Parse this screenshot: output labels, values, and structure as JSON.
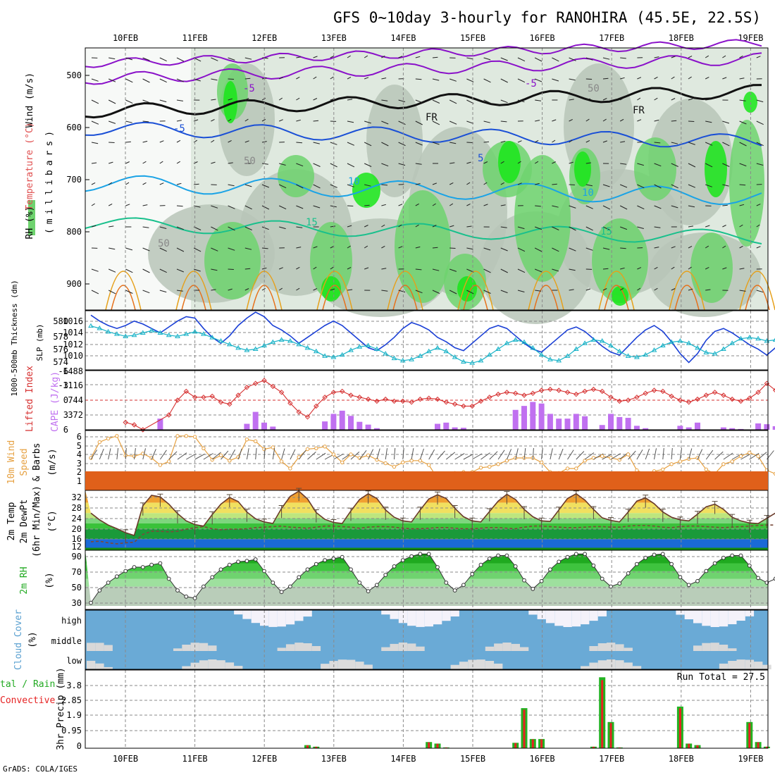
{
  "title": "GFS 0~10day 3-hourly for RANOHIRA (45.5E, 22.5S)",
  "footer": "GrADS: COLA/IGES",
  "dates": [
    "10FEB",
    "11FEB",
    "12FEB",
    "13FEB",
    "14FEB",
    "15FEB",
    "16FEB",
    "17FEB",
    "18FEB",
    "19FEB"
  ],
  "colors": {
    "rh_light": "#dfe9df",
    "rh_mid": "#b9c6b9",
    "rh_green": "#6fd36f",
    "rh_bright": "#19e619",
    "temp_purple": "#8a11c9",
    "temp_blue": "#1a4fd6",
    "temp_cyan": "#1aa3e6",
    "temp_teal": "#19c08c",
    "temp_orange": "#e6a01a",
    "temp_red": "#d61a8c",
    "slp": "#1a3fd6",
    "thickness": "#19b3c8",
    "lifted_index": "#d62f2f",
    "cape": "#c070f0",
    "wind_speed": "#e6a040",
    "cloud": "#6aaad6",
    "precip_total": "#22b322",
    "precip_conv": "#e62222"
  },
  "upper_panel": {
    "label_wind": "Wind (m/s)",
    "label_temp": "Temperature (°C)",
    "label_rh": "RH (%)",
    "label_pressure": "(millibars)",
    "pressure_ticks": [
      "500",
      "600",
      "700",
      "800",
      "900"
    ],
    "contour_labels": [
      "-5",
      "-5",
      "FR",
      "FR",
      "-5",
      "5",
      "10",
      "10",
      "15",
      "15",
      "50",
      "50",
      "50"
    ]
  },
  "slp_panel": {
    "label_left": "1000-500mb Thickness (dm)",
    "label_right": "SLP (mb)",
    "left_ticks": [
      "580",
      "578",
      "576",
      "574"
    ],
    "right_ticks": [
      "1016",
      "1014",
      "1012",
      "1010"
    ]
  },
  "cape_panel": {
    "label_left": "Lifted Index",
    "label_right": "CAPE (J/kg)",
    "left_ticks": [
      "-6",
      "-3",
      "0",
      "3",
      "6"
    ],
    "right_ticks": [
      "1488",
      "1116",
      "744",
      "372"
    ]
  },
  "wind10_panel": {
    "label_a": "10m Wind",
    "label_b": "Speed",
    "label_c": "& Barbs",
    "unit": "(m/s)",
    "ticks": [
      "6",
      "5",
      "4",
      "3",
      "2",
      "1"
    ]
  },
  "temp2m_panel": {
    "label_a": "2m Temp",
    "label_b": "2m DewPt",
    "label_c": "(6hr Min/Max)",
    "unit": "(°C)",
    "ticks": [
      "32",
      "28",
      "24",
      "20",
      "16",
      "12"
    ]
  },
  "rh2m_panel": {
    "label": "2m RH",
    "unit": "(%)",
    "ticks": [
      "90",
      "70",
      "50",
      "30"
    ]
  },
  "cloud_panel": {
    "label": "Cloud Cover",
    "unit": "(%)",
    "levels": [
      "high",
      "middle",
      "low"
    ]
  },
  "precip_panel": {
    "label_a": "tal / Rain",
    "label_b": "Convective",
    "label_c": "3hr Precip (mm)",
    "ticks": [
      "3.8",
      "2.85",
      "1.9",
      "0.95",
      "0"
    ],
    "run_total": "Run Total = 27.5"
  },
  "chart_data": {
    "type": "line",
    "x_start": "10FEB",
    "x_step_hours": 3,
    "series": [
      {
        "name": "SLP (mb)",
        "values": [
          1016.4,
          1015.6,
          1015.0,
          1014.6,
          1015.0,
          1015.6,
          1015.2,
          1014.6,
          1014.0,
          1014.8,
          1015.6,
          1016.2,
          1016.0,
          1014.6,
          1013.4,
          1012.6,
          1013.6,
          1015.0,
          1016.0,
          1016.8,
          1016.2,
          1015.0,
          1014.4,
          1013.6,
          1012.6,
          1013.4,
          1014.2,
          1015.0,
          1015.6,
          1015.0,
          1014.0,
          1013.0,
          1012.0,
          1011.6,
          1012.4,
          1013.4,
          1014.6,
          1015.4,
          1015.0,
          1014.4,
          1013.4,
          1012.8,
          1012.0,
          1011.6,
          1012.6,
          1013.6,
          1014.6,
          1015.0,
          1014.6,
          1013.6,
          1012.6,
          1011.8,
          1011.4,
          1012.4,
          1013.4,
          1014.4,
          1014.8,
          1014.2,
          1013.2,
          1012.2,
          1011.4,
          1011.0,
          1012.2,
          1013.4,
          1014.4,
          1015.0,
          1014.2,
          1012.8,
          1011.2,
          1010.0,
          1011.2,
          1013.0,
          1014.2,
          1014.6,
          1014.0,
          1013.2,
          1012.4,
          1011.8,
          1011.0,
          1012.0,
          1013.2,
          1014.2
        ]
      },
      {
        "name": "1000-500mb Thickness (dm)",
        "values": [
          580.6,
          580.2,
          579.6,
          579.2,
          578.8,
          579.0,
          579.4,
          579.8,
          579.4,
          579.0,
          578.8,
          579.2,
          579.6,
          579.2,
          578.6,
          578.0,
          577.4,
          576.8,
          576.4,
          576.6,
          577.2,
          577.8,
          578.2,
          578.0,
          577.4,
          576.8,
          576.2,
          575.4,
          575.2,
          575.6,
          576.4,
          577.0,
          577.2,
          576.6,
          575.8,
          575.0,
          574.6,
          574.8,
          575.4,
          576.2,
          576.8,
          576.2,
          575.2,
          574.4,
          574.2,
          574.6,
          575.6,
          576.6,
          577.6,
          578.2,
          577.8,
          576.8,
          575.6,
          574.8,
          574.6,
          575.4,
          576.6,
          577.6,
          578.2,
          578.0,
          577.2,
          576.2,
          575.4,
          575.2,
          575.6,
          576.4,
          577.2,
          577.8,
          578.0,
          577.6,
          576.8,
          576.0,
          575.8,
          576.6,
          577.6,
          578.4,
          578.6,
          578.4,
          578.0,
          578.2,
          578.6,
          578.6
        ]
      },
      {
        "name": "Lifted Index",
        "values": [
          null,
          null,
          null,
          null,
          4.5,
          5,
          6,
          null,
          null,
          3,
          0,
          -1.8,
          -0.6,
          -0.6,
          -0.8,
          0.4,
          0.8,
          -1,
          -2.6,
          -3.4,
          -4,
          -2.8,
          -1.6,
          0.6,
          2.4,
          3.4,
          1.2,
          -0.6,
          -1.6,
          -1.8,
          -1,
          -0.6,
          -0.2,
          0.2,
          -0.2,
          0.2,
          0.2,
          0.4,
          -0.2,
          -0.4,
          -0.2,
          0.4,
          0.8,
          1.2,
          1.2,
          0.2,
          -0.6,
          -1.2,
          -1.6,
          -1.4,
          -1.0,
          -1.4,
          -2.0,
          -2.2,
          -2.0,
          -1.6,
          -1.2,
          -1.8,
          -2.2,
          -1.8,
          -0.6,
          0.2,
          0.0,
          -0.6,
          -1.4,
          -2.0,
          -1.8,
          -0.8,
          0.0,
          0.4,
          -0.2,
          -1.0,
          -1.6,
          -1.0,
          -0.2,
          0.2,
          -0.4,
          -1.6,
          -3.4,
          -2.0,
          -0.6,
          -1.0
        ]
      },
      {
        "name": "CAPE (J/kg)",
        "values": [
          0,
          0,
          0,
          0,
          0,
          0,
          0,
          0,
          420,
          0,
          0,
          0,
          0,
          0,
          0,
          0,
          0,
          0,
          0,
          0,
          0,
          0,
          210,
          340,
          160,
          80,
          0,
          0,
          0,
          0,
          0,
          0,
          0,
          0,
          0,
          0,
          0,
          0,
          0,
          0,
          0,
          0,
          0,
          0,
          0,
          0,
          0,
          0,
          0,
          0,
          0,
          0,
          0,
          0,
          0,
          0,
          0,
          0,
          0,
          0,
          0,
          0,
          0,
          0,
          0,
          0,
          0,
          0,
          0,
          0,
          0,
          0,
          0,
          0,
          0,
          0,
          0,
          0,
          0,
          0,
          0,
          0,
          0,
          0
        ]
      },
      {
        "name": "10m Wind Speed (m/s)",
        "values": [
          3.6,
          5.4,
          5.8,
          6.1,
          3.9,
          3.8,
          4.1,
          3.6,
          2.8,
          3.2,
          6.1,
          6.1,
          6.0,
          4.7,
          3.4,
          3.9,
          3.3,
          3.7,
          5.7,
          5.5,
          4.6,
          4.8,
          3.2,
          2.4,
          3.7,
          4.6,
          4.7,
          4.9,
          4.0,
          3.1,
          4.0,
          3.6,
          3.9,
          3.4,
          3.0,
          2.6,
          3.1,
          3.3,
          3.3,
          2.8,
          1.3,
          1.2,
          1.9,
          2.0,
          2.0,
          2.5,
          2.6,
          2.9,
          3.3,
          3.6,
          3.6,
          3.6,
          3.1,
          2.0,
          1.9,
          2.4,
          2.4,
          3.3,
          3.6,
          3.8,
          3.6,
          3.4,
          4.0,
          2.2,
          1.8,
          2.1,
          2.3,
          2.9,
          3.2,
          3.5,
          3.6,
          2.3,
          1.8,
          2.9,
          3.2,
          3.8,
          4.2,
          3.8,
          2.2,
          1.8,
          1.5,
          1.7
        ]
      },
      {
        "name": "2m Temp (°C)",
        "values": [
          24.0,
          21.4,
          19.4,
          18.0,
          16.5,
          15.4,
          26.8,
          30.8,
          30.2,
          27.4,
          23.8,
          21.0,
          19.6,
          19.0,
          23.4,
          27.4,
          30.0,
          28.4,
          24.4,
          21.8,
          20.6,
          20.0,
          25.8,
          30.4,
          32.4,
          29.4,
          24.2,
          21.6,
          20.4,
          20.0,
          24.8,
          29.2,
          31.4,
          29.6,
          25.2,
          22.4,
          21.0,
          20.6,
          25.2,
          29.4,
          31.0,
          29.6,
          25.8,
          22.6,
          21.0,
          20.6,
          24.6,
          28.6,
          31.2,
          29.2,
          25.4,
          22.6,
          21.0,
          20.8,
          25.2,
          29.6,
          31.4,
          29.0,
          25.4,
          22.2,
          21.2,
          20.6,
          24.4,
          28.6,
          29.8,
          27.6,
          24.4,
          22.4,
          21.4,
          21.0,
          23.6,
          26.4,
          27.4,
          25.4,
          22.4,
          21.0,
          20.2,
          20.0,
          22.0,
          24.0,
          25.0,
          22.4
        ]
      },
      {
        "name": "2m DewPt (°C)",
        "values": [
          13.0,
          13.2,
          12.6,
          12.2,
          12.6,
          12.8,
          15.8,
          17.0,
          17.0,
          16.8,
          17.0,
          17.8,
          18.4,
          18.8,
          18.0,
          17.6,
          17.8,
          17.8,
          18.0,
          18.4,
          18.6,
          18.8,
          19.0,
          18.6,
          18.4,
          18.2,
          18.6,
          19.0,
          19.0,
          18.8,
          18.6,
          18.2,
          18.6,
          18.8,
          18.8,
          18.6,
          18.2,
          18.0,
          18.0,
          18.2,
          18.4,
          18.4,
          18.2,
          18.0,
          18.0,
          18.2,
          18.4,
          18.4,
          18.2,
          18.0,
          18.6,
          19.0,
          19.0,
          18.8,
          18.6,
          18.4,
          18.4,
          18.6,
          18.8,
          18.8,
          18.6,
          18.6,
          19.0,
          19.2,
          19.2,
          19.0,
          18.6,
          18.4,
          18.8,
          19.0,
          19.0,
          18.8,
          18.6,
          18.4,
          18.6,
          18.8,
          19.0,
          19.2,
          19.4,
          19.4,
          19.4,
          19.6
        ]
      },
      {
        "name": "2m RH (%)",
        "values": [
          29,
          45,
          55,
          63,
          70,
          75,
          75,
          78,
          80,
          60,
          45,
          37,
          35,
          50,
          62,
          72,
          78,
          82,
          83,
          85,
          70,
          55,
          43,
          50,
          62,
          72,
          79,
          84,
          86,
          88,
          72,
          55,
          44,
          52,
          65,
          76,
          84,
          89,
          92,
          92,
          75,
          55,
          45,
          52,
          66,
          78,
          86,
          90,
          90,
          76,
          58,
          47,
          57,
          72,
          82,
          88,
          92,
          92,
          77,
          60,
          50,
          54,
          67,
          79,
          87,
          91,
          92,
          79,
          62,
          52,
          57,
          70,
          80,
          87,
          90,
          90,
          77,
          61,
          55,
          60,
          72,
          81
        ]
      },
      {
        "name": "3hr Precip (mm)",
        "values": [
          0,
          0,
          0,
          0,
          0,
          0,
          0,
          0,
          0,
          0,
          0,
          0,
          0,
          0,
          0,
          0,
          0,
          0,
          0,
          0,
          0,
          0,
          0,
          0,
          0,
          0.2,
          0.1,
          0,
          0,
          0,
          0,
          0,
          0,
          0,
          0,
          0,
          0,
          0,
          0,
          0.4,
          0.3,
          0.05,
          0,
          0,
          0,
          0,
          0,
          0,
          0,
          0.35,
          2.6,
          0.6,
          0.6,
          0,
          0,
          0,
          0,
          0,
          0.1,
          4.6,
          1.7,
          0.05,
          0,
          0,
          0,
          0,
          0,
          0,
          2.7,
          0.3,
          0.2,
          0,
          0,
          0,
          0,
          0,
          1.7,
          0.4,
          0.1,
          0,
          0,
          0
        ]
      }
    ]
  }
}
